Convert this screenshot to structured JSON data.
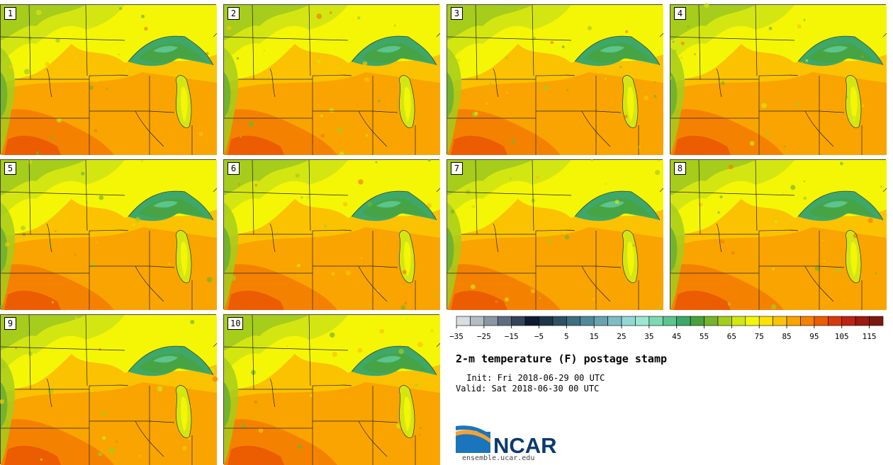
{
  "members": [
    {
      "label": "1"
    },
    {
      "label": "2"
    },
    {
      "label": "3"
    },
    {
      "label": "4"
    },
    {
      "label": "5"
    },
    {
      "label": "6"
    },
    {
      "label": "7"
    },
    {
      "label": "8"
    },
    {
      "label": "9"
    },
    {
      "label": "10"
    }
  ],
  "colorbar": {
    "boundaries": [
      -35,
      -30,
      -25,
      -20,
      -15,
      -10,
      -5,
      0,
      5,
      10,
      15,
      20,
      25,
      30,
      35,
      40,
      45,
      50,
      55,
      60,
      65,
      70,
      75,
      80,
      85,
      90,
      95,
      100,
      105,
      110,
      115,
      120
    ],
    "colors": [
      "#d8dde0",
      "#b4bcc4",
      "#8a96a4",
      "#5e6c80",
      "#34425a",
      "#0e1a30",
      "#1e3448",
      "#2e5064",
      "#3e6e80",
      "#50899a",
      "#65a4b0",
      "#7cbec4",
      "#94d8d6",
      "#9ce6d4",
      "#7ed8b2",
      "#5cc48e",
      "#3da86a",
      "#48a23c",
      "#74b42c",
      "#a6cc1c",
      "#d4e612",
      "#f4f606",
      "#fde000",
      "#fcc400",
      "#f9a400",
      "#f48200",
      "#ec5c00",
      "#d63a0a",
      "#bc2410",
      "#9c1a10",
      "#7c1810"
    ],
    "tick_labels": [
      "−35",
      "−25",
      "−15",
      "−5",
      "5",
      "15",
      "25",
      "35",
      "45",
      "55",
      "65",
      "75",
      "85",
      "95",
      "105",
      "115"
    ],
    "tick_values": [
      -35,
      -25,
      -15,
      -5,
      5,
      15,
      25,
      35,
      45,
      55,
      65,
      75,
      85,
      95,
      105,
      115
    ]
  },
  "title": "2-m temperature (F) postage stamp",
  "init": " Init: Fri 2018-06-29 00 UTC",
  "valid": "Valid: Sat 2018-06-30 00 UTC",
  "logo": {
    "name": "NCAR",
    "url": "ensemble.ucar.edu"
  }
}
